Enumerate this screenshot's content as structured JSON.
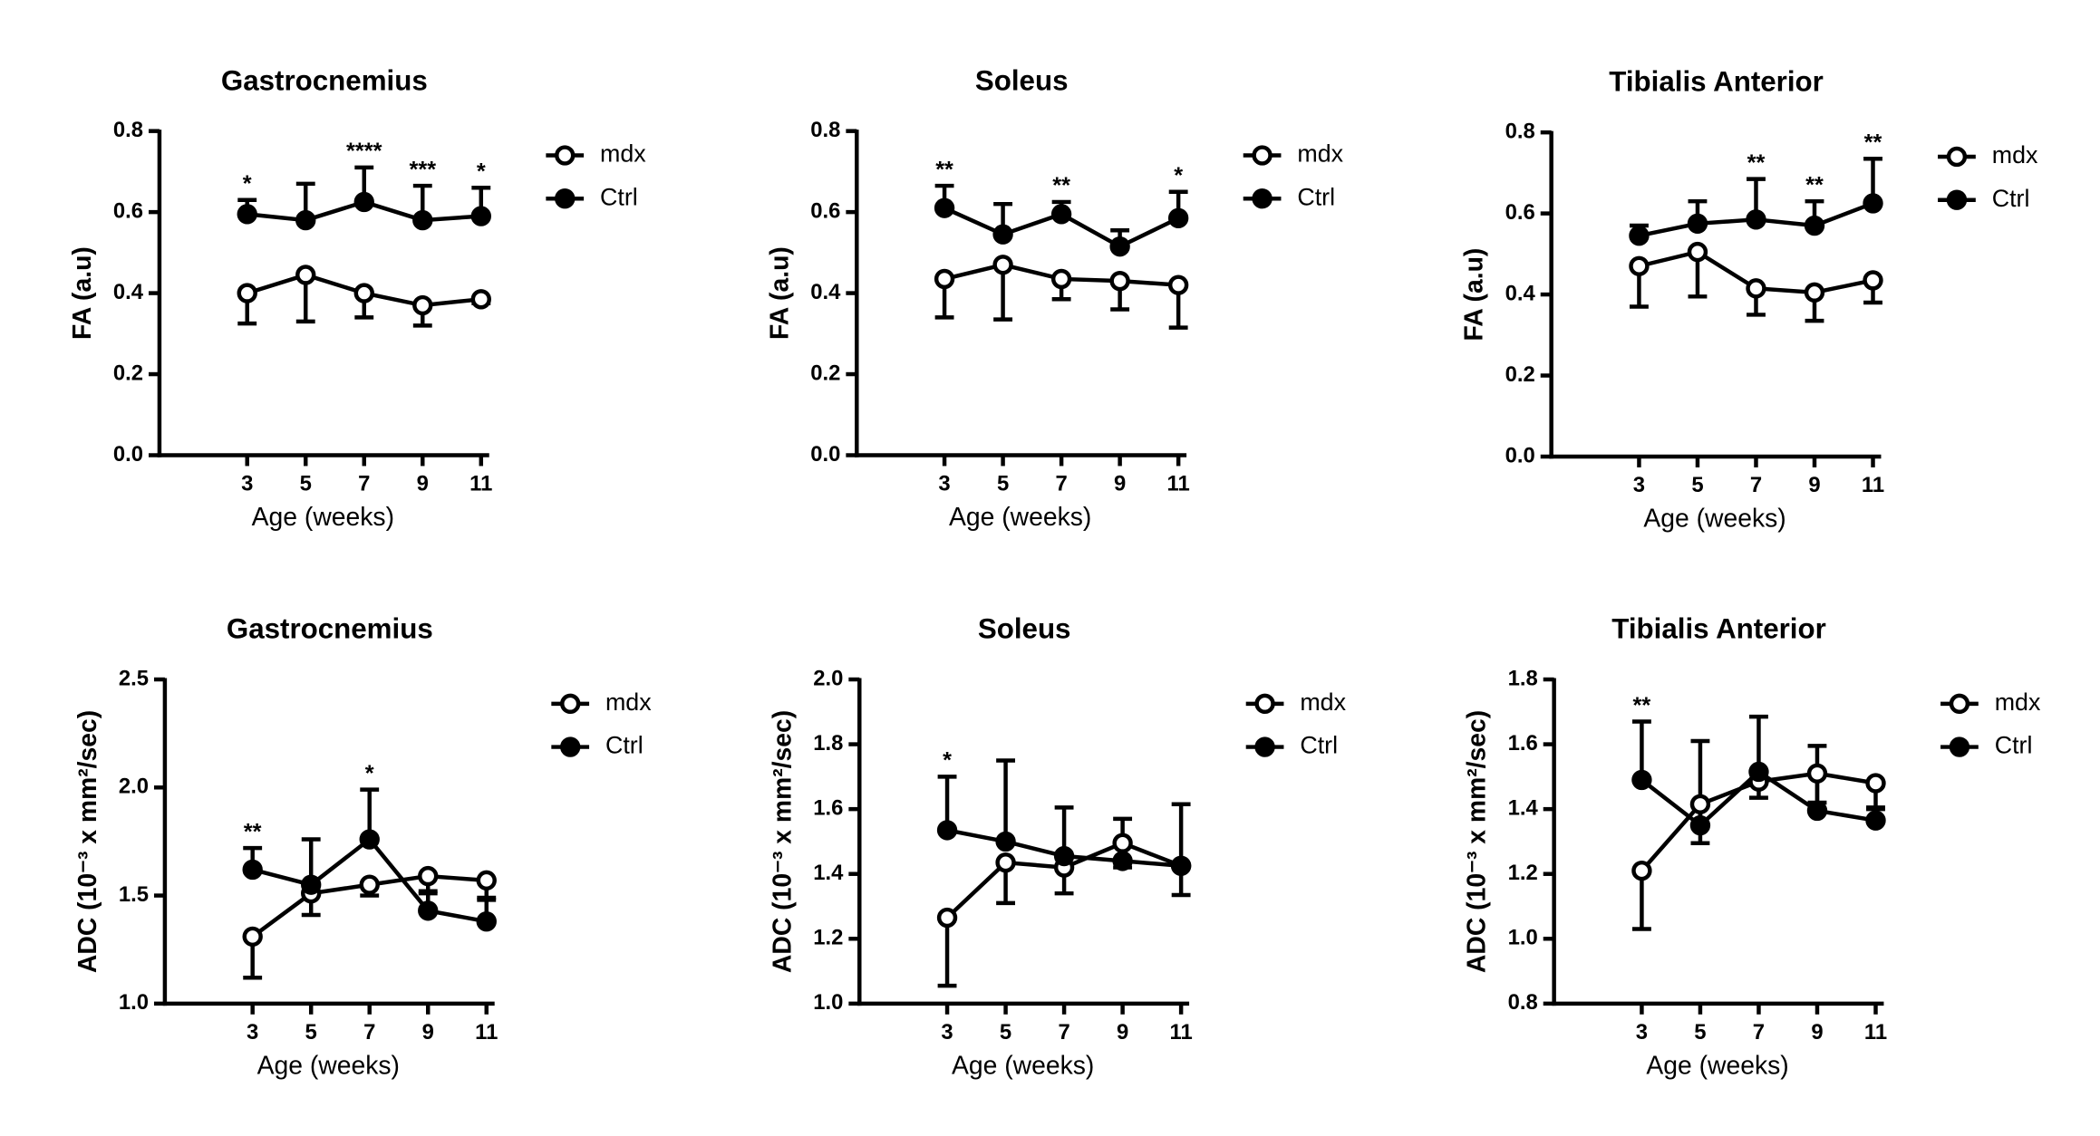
{
  "chart_data": [
    {
      "type": "line",
      "title": "Gastrocnemius",
      "xlabel": "Age (weeks)",
      "ylabel": "FA (a.u)",
      "x": [
        3,
        5,
        7,
        9,
        11
      ],
      "xlim": [
        0,
        11
      ],
      "xticks": [
        3,
        5,
        7,
        9,
        11
      ],
      "ylim": [
        0,
        0.8
      ],
      "yticks": [
        {
          "value": 0,
          "label": "0.0"
        },
        0.2,
        0.4,
        0.6,
        0.8
      ],
      "series": [
        {
          "name": "mdx",
          "color": "#000000",
          "marker": "open",
          "error_side": "down",
          "values": [
            0.4,
            0.445,
            0.4,
            0.37,
            0.385
          ],
          "errors": [
            0.075,
            0.115,
            0.06,
            0.05,
            0.01
          ]
        },
        {
          "name": "Ctrl",
          "color": "#000000",
          "marker": "filled",
          "error_side": "up",
          "values": [
            0.595,
            0.58,
            0.625,
            0.58,
            0.59
          ],
          "errors": [
            0.035,
            0.09,
            0.085,
            0.085,
            0.07
          ]
        }
      ],
      "annotations": [
        {
          "x": 3,
          "text": "*"
        },
        {
          "x": 7,
          "text": "****"
        },
        {
          "x": 9,
          "text": "***"
        },
        {
          "x": 11,
          "text": "*"
        }
      ]
    },
    {
      "type": "line",
      "title": "Soleus",
      "xlabel": "Age (weeks)",
      "ylabel": "FA (a.u)",
      "x": [
        3,
        5,
        7,
        9,
        11
      ],
      "xlim": [
        0,
        11
      ],
      "xticks": [
        3,
        5,
        7,
        9,
        11
      ],
      "ylim": [
        0,
        0.8
      ],
      "yticks": [
        {
          "value": 0,
          "label": "0.0"
        },
        0.2,
        0.4,
        0.6,
        0.8
      ],
      "series": [
        {
          "name": "mdx",
          "color": "#000000",
          "marker": "open",
          "error_side": "down",
          "values": [
            0.435,
            0.47,
            0.435,
            0.43,
            0.42
          ],
          "errors": [
            0.095,
            0.135,
            0.05,
            0.07,
            0.105
          ]
        },
        {
          "name": "Ctrl",
          "color": "#000000",
          "marker": "filled",
          "error_side": "up",
          "values": [
            0.61,
            0.545,
            0.595,
            0.515,
            0.585
          ],
          "errors": [
            0.055,
            0.075,
            0.03,
            0.04,
            0.065
          ]
        }
      ],
      "annotations": [
        {
          "x": 3,
          "text": "**"
        },
        {
          "x": 7,
          "text": "**"
        },
        {
          "x": 11,
          "text": "*"
        }
      ]
    },
    {
      "type": "line",
      "title": "Tibialis Anterior",
      "xlabel": "Age (weeks)",
      "ylabel": "FA (a.u)",
      "x": [
        3,
        5,
        7,
        9,
        11
      ],
      "xlim": [
        0,
        11
      ],
      "xticks": [
        3,
        5,
        7,
        9,
        11
      ],
      "ylim": [
        0,
        0.8
      ],
      "yticks": [
        {
          "value": 0,
          "label": "0.0"
        },
        0.2,
        0.4,
        0.6,
        0.8
      ],
      "series": [
        {
          "name": "mdx",
          "color": "#000000",
          "marker": "open",
          "error_side": "down",
          "values": [
            0.47,
            0.505,
            0.415,
            0.405,
            0.435
          ],
          "errors": [
            0.1,
            0.11,
            0.065,
            0.07,
            0.055
          ]
        },
        {
          "name": "Ctrl",
          "color": "#000000",
          "marker": "filled",
          "error_side": "up",
          "values": [
            0.545,
            0.575,
            0.585,
            0.57,
            0.625
          ],
          "errors": [
            0.025,
            0.055,
            0.1,
            0.06,
            0.11
          ]
        }
      ],
      "annotations": [
        {
          "x": 7,
          "text": "**"
        },
        {
          "x": 9,
          "text": "**"
        },
        {
          "x": 11,
          "text": "**"
        }
      ]
    },
    {
      "type": "line",
      "title": "Gastrocnemius",
      "xlabel": "Age (weeks)",
      "ylabel": "ADC (10⁻³ x mm²/sec)",
      "x": [
        3,
        5,
        7,
        9,
        11
      ],
      "xlim": [
        0,
        11
      ],
      "xticks": [
        3,
        5,
        7,
        9,
        11
      ],
      "ylim": [
        1,
        2.5
      ],
      "yticks": [
        {
          "value": 1,
          "label": "1.0"
        },
        1.5,
        {
          "value": 2,
          "label": "2.0"
        },
        2.5
      ],
      "series": [
        {
          "name": "mdx",
          "color": "#000000",
          "marker": "open",
          "error_side": "down",
          "values": [
            1.31,
            1.51,
            1.55,
            1.59,
            1.57
          ],
          "errors": [
            0.19,
            0.1,
            0.05,
            0.07,
            0.08
          ]
        },
        {
          "name": "Ctrl",
          "color": "#000000",
          "marker": "filled",
          "error_side": "up",
          "values": [
            1.62,
            1.55,
            1.76,
            1.43,
            1.38
          ],
          "errors": [
            0.1,
            0.21,
            0.23,
            0.08,
            0.1
          ]
        }
      ],
      "annotations": [
        {
          "x": 3,
          "text": "**"
        },
        {
          "x": 7,
          "text": "*"
        }
      ]
    },
    {
      "type": "line",
      "title": "Soleus",
      "xlabel": "Age (weeks)",
      "ylabel": "ADC (10⁻³ x mm²/sec)",
      "x": [
        3,
        5,
        7,
        9,
        11
      ],
      "xlim": [
        0,
        11
      ],
      "xticks": [
        3,
        5,
        7,
        9,
        11
      ],
      "ylim": [
        1,
        2
      ],
      "yticks": [
        {
          "value": 1,
          "label": "1.0"
        },
        1.2,
        1.4,
        1.6,
        1.8,
        {
          "value": 2,
          "label": "2.0"
        }
      ],
      "series": [
        {
          "name": "mdx",
          "color": "#000000",
          "marker": "open",
          "error_side": "down",
          "values": [
            1.265,
            1.435,
            1.42,
            1.495,
            1.425
          ],
          "errors": [
            0.21,
            0.125,
            0.08,
            0.075,
            0.09
          ]
        },
        {
          "name": "Ctrl",
          "color": "#000000",
          "marker": "filled",
          "error_side": "up",
          "values": [
            1.535,
            1.5,
            1.455,
            1.44,
            1.425
          ],
          "errors": [
            0.165,
            0.25,
            0.15,
            0.13,
            0.19
          ]
        }
      ],
      "annotations": [
        {
          "x": 3,
          "text": "*"
        }
      ]
    },
    {
      "type": "line",
      "title": "Tibialis Anterior",
      "xlabel": "Age (weeks)",
      "ylabel": "ADC (10⁻³ x mm²/sec)",
      "x": [
        3,
        5,
        7,
        9,
        11
      ],
      "xlim": [
        0,
        11
      ],
      "xticks": [
        3,
        5,
        7,
        9,
        11
      ],
      "ylim": [
        0.8,
        1.8
      ],
      "yticks": [
        0.8,
        {
          "value": 1,
          "label": "1.0"
        },
        1.2,
        1.4,
        1.6,
        1.8
      ],
      "series": [
        {
          "name": "mdx",
          "color": "#000000",
          "marker": "open",
          "error_side": "down",
          "values": [
            1.21,
            1.415,
            1.485,
            1.51,
            1.48
          ],
          "errors": [
            0.18,
            0.12,
            0.05,
            0.09,
            0.08
          ]
        },
        {
          "name": "Ctrl",
          "color": "#000000",
          "marker": "filled",
          "error_side": "up",
          "values": [
            1.49,
            1.35,
            1.515,
            1.395,
            1.365
          ],
          "errors": [
            0.18,
            0.26,
            0.17,
            0.2,
            0.04
          ]
        }
      ],
      "annotations": [
        {
          "x": 3,
          "text": "**"
        }
      ]
    }
  ]
}
